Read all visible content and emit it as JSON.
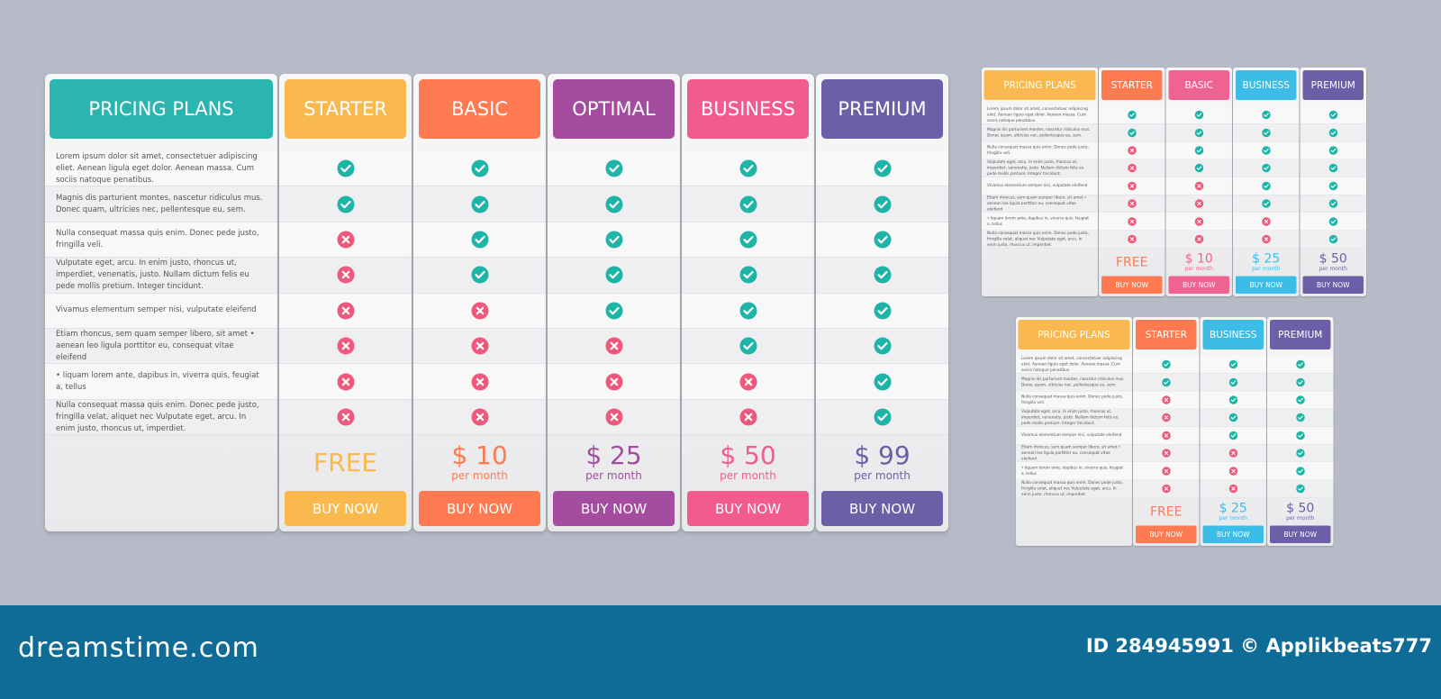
{
  "tables": [
    {
      "title": "PRICING PLANS",
      "title_color": "#2bb5b0",
      "features": [
        "Lorem ipsum dolor sit amet, consectetuer adipiscing eliet. Aenean ligula eget dolor. Aenean massa. Cum sociis natoque penatibus.",
        "Magnis dis parturient montes, nascetur ridiculus mus. Donec quam, ultricies nec, pellentesque eu, sem.",
        "Nulla consequat massa quis enim. Donec pede justo, fringilla veli.",
        "Vulputate eget, arcu. In enim justo, rhoncus ut, imperdiet, venenatis, justo. Nullam dictum felis eu pede mollis pretium. Integer tincidunt.",
        "Vivamus elementum semper nisi, vulputate eleifend",
        "Etiam rhoncus, sem quam semper libero, sit amet • aenean leo ligula porttitor eu, consequat vitae eleifend",
        "• liquam lorem ante, dapibus in, viverra quis, feugiat a, tellus",
        "Nulla consequat massa quis enim. Donec pede justo, fringilla velat, aliquet nec Vulputate eget, arcu. In enim justo, rhoncus ut, imperdiet."
      ],
      "plans": [
        {
          "name": "STARTER",
          "color": "#f9b94f",
          "price": "FREE",
          "button": "BUY NOW",
          "checks": [
            true,
            true,
            false,
            false,
            false,
            false,
            false,
            false
          ]
        },
        {
          "name": "BASIC",
          "color": "#ff7a50",
          "price": "$ 10",
          "period": "per month",
          "button": "BUY NOW",
          "checks": [
            true,
            true,
            true,
            true,
            false,
            false,
            false,
            false
          ]
        },
        {
          "name": "OPTIMAL",
          "color": "#a44c9f",
          "price": "$ 25",
          "period": "per month",
          "button": "BUY NOW",
          "checks": [
            true,
            true,
            true,
            true,
            true,
            false,
            false,
            false
          ]
        },
        {
          "name": "BUSINESS",
          "color": "#f25c8c",
          "price": "$ 50",
          "period": "per month",
          "button": "BUY NOW",
          "checks": [
            true,
            true,
            true,
            true,
            true,
            true,
            false,
            false
          ]
        },
        {
          "name": "PREMIUM",
          "color": "#6c5fa8",
          "price": "$ 99",
          "period": "per month",
          "button": "BUY NOW",
          "checks": [
            true,
            true,
            true,
            true,
            true,
            true,
            true,
            true
          ]
        }
      ]
    },
    {
      "title": "PRICING PLANS",
      "title_color": "#f9b94f",
      "features": [
        "Lorem ipsum dolor sit amet, consectetuer adipiscing eliet. Aenean ligula eget dolor. Aenean massa. Cum sociis natoque penatibus.",
        "Magnis dis parturient montes, nascetur ridiculus mus. Donec quam, ultricies nec, pellentesque eu, sem.",
        "Nulla consequat massa quis enim. Donec pede justo, fringilla veli.",
        "Vulputate eget, arcu. In enim justo, rhoncus ut, imperdiet, venenatis, justo. Nullam dictum felis eu pede mollis pretium. Integer tincidunt.",
        "Vivamus elementum semper nisi, vulputate eleifend",
        "Etiam rhoncus, sem quam semper libero, sit amet • aenean leo ligula porttitor eu, consequat vitae eleifend",
        "• liquam lorem ante, dapibus in, viverra quis, feugiat a, tellus",
        "Nulla consequat massa quis enim. Donec pede justo, fringilla velat, aliquet nec Vulputate eget, arcu. In enim justo, rhoncus ut, imperdiet."
      ],
      "plans": [
        {
          "name": "STARTER",
          "color": "#ff7a50",
          "price": "FREE",
          "button": "BUY NOW",
          "checks": [
            true,
            true,
            false,
            false,
            false,
            false,
            false,
            false
          ]
        },
        {
          "name": "BASIC",
          "color": "#f06292",
          "price": "$ 10",
          "period": "per month",
          "button": "BUY NOW",
          "checks": [
            true,
            true,
            true,
            true,
            false,
            false,
            false,
            false
          ]
        },
        {
          "name": "BUSINESS",
          "color": "#3bbde8",
          "price": "$ 25",
          "period": "per month",
          "button": "BUY NOW",
          "checks": [
            true,
            true,
            true,
            true,
            true,
            true,
            false,
            false
          ]
        },
        {
          "name": "PREMIUM",
          "color": "#6c5fa8",
          "price": "$ 50",
          "period": "per month",
          "button": "BUY NOW",
          "checks": [
            true,
            true,
            true,
            true,
            true,
            true,
            true,
            true
          ]
        }
      ]
    },
    {
      "title": "PRICING PLANS",
      "title_color": "#f9b94f",
      "features": [
        "Lorem ipsum dolor sit amet, consectetuer adipiscing eliet. Aenean ligula eget dolor. Aenean massa. Cum sociis natoque penatibus.",
        "Magnis dis parturient montes, nascetur ridiculus mus. Donec quam, ultricies nec, pellentesque eu, sem.",
        "Nulla consequat massa quis enim. Donec pede justo, fringilla veli.",
        "Vulputate eget, arcu. In enim justo, rhoncus ut, imperdiet, venenatis, justo. Nullam dictum felis eu pede mollis pretium. Integer tincidunt.",
        "Vivamus elementum semper nisi, vulputate eleifend",
        "Etiam rhoncus, sem quam semper libero, sit amet • aenean leo ligula porttitor eu, consequat vitae eleifend",
        "• liquam lorem ante, dapibus in, viverra quis, feugiat a, tellus",
        "Nulla consequat massa quis enim. Donec pede justo, fringilla velat, aliquet nec Vulputate eget, arcu. In enim justo, rhoncus ut, imperdiet."
      ],
      "plans": [
        {
          "name": "STARTER",
          "color": "#ff7a50",
          "price": "FREE",
          "button": "BUY NOW",
          "checks": [
            true,
            true,
            false,
            false,
            false,
            false,
            false,
            false
          ]
        },
        {
          "name": "BUSINESS",
          "color": "#3bbde8",
          "price": "$ 25",
          "period": "per month",
          "button": "BUY NOW",
          "checks": [
            true,
            true,
            true,
            true,
            true,
            false,
            false,
            false
          ]
        },
        {
          "name": "PREMIUM",
          "color": "#6c5fa8",
          "price": "$ 50",
          "period": "per month",
          "button": "BUY NOW",
          "checks": [
            true,
            true,
            true,
            true,
            true,
            true,
            true,
            true
          ]
        }
      ]
    }
  ],
  "footer": {
    "brand": "dreamstime.com",
    "credit": "ID 284945991 © Applikbeats777"
  }
}
